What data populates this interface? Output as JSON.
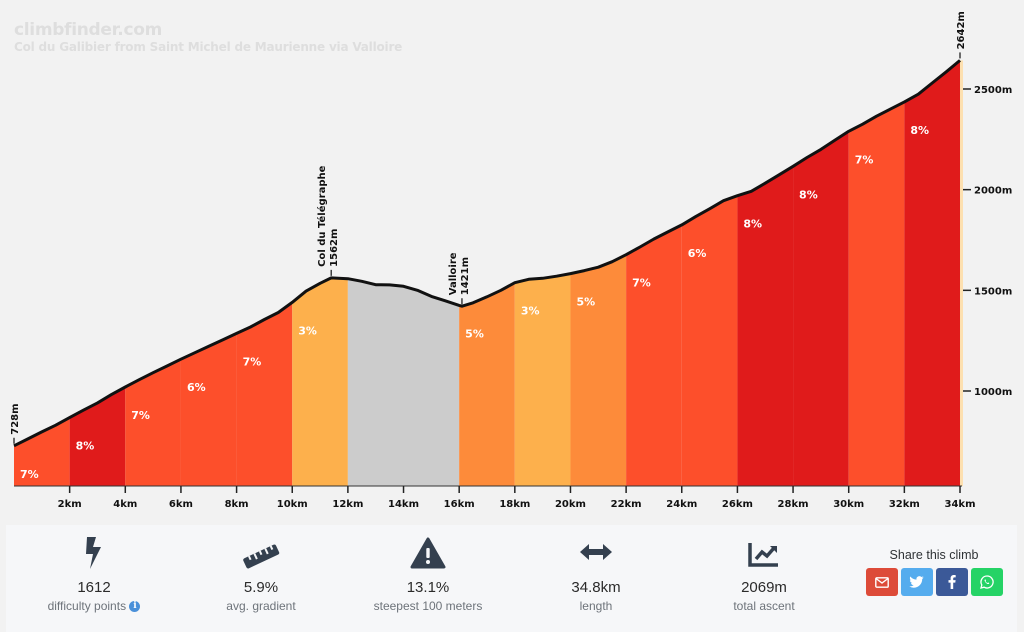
{
  "header": {
    "site": "climbfinder.com",
    "climb_title": "Col du Galibier from Saint Michel de Maurienne via Valloire"
  },
  "chart_data": {
    "type": "area",
    "title": "Col du Galibier from Saint Michel de Maurienne via Valloire",
    "xlabel": "",
    "ylabel": "",
    "x_unit": "km",
    "y_unit": "m",
    "xlim": [
      0,
      34
    ],
    "ylim": [
      530,
      2700
    ],
    "x_ticks": [
      2,
      4,
      6,
      8,
      10,
      12,
      14,
      16,
      18,
      20,
      22,
      24,
      26,
      28,
      30,
      32,
      34
    ],
    "x_tick_labels": [
      "2km",
      "4km",
      "6km",
      "8km",
      "10km",
      "12km",
      "14km",
      "16km",
      "18km",
      "20km",
      "22km",
      "24km",
      "26km",
      "28km",
      "30km",
      "32km",
      "34km"
    ],
    "y_ticks": [
      1000,
      1500,
      2000,
      2500
    ],
    "y_tick_labels": [
      "1000m",
      "1500m",
      "2000m",
      "2500m"
    ],
    "profile": {
      "x": [
        0,
        0.5,
        1,
        1.5,
        2,
        2.5,
        3,
        3.5,
        4,
        4.5,
        5,
        5.5,
        6,
        6.5,
        7,
        7.5,
        8,
        8.5,
        9,
        9.5,
        10,
        10.5,
        11,
        11.4,
        12,
        12.5,
        13,
        13.5,
        14,
        14.5,
        15,
        15.5,
        16,
        16.1,
        16.5,
        17,
        17.5,
        18,
        18.5,
        19,
        19.5,
        20,
        20.5,
        21,
        21.5,
        22,
        22.5,
        23,
        23.5,
        24,
        24.5,
        25,
        25.5,
        26,
        26.5,
        27,
        27.5,
        28,
        28.5,
        29,
        29.5,
        30,
        30.5,
        31,
        31.5,
        32,
        32.5,
        33,
        33.5,
        34
      ],
      "y": [
        728,
        762,
        797,
        830,
        868,
        905,
        941,
        982,
        1020,
        1056,
        1091,
        1124,
        1158,
        1190,
        1222,
        1254,
        1286,
        1318,
        1355,
        1390,
        1440,
        1496,
        1535,
        1562,
        1558,
        1545,
        1528,
        1527,
        1520,
        1500,
        1470,
        1448,
        1425,
        1421,
        1438,
        1468,
        1500,
        1538,
        1555,
        1560,
        1570,
        1583,
        1598,
        1615,
        1642,
        1677,
        1715,
        1755,
        1790,
        1825,
        1866,
        1905,
        1945,
        1970,
        1992,
        2032,
        2074,
        2116,
        2160,
        2200,
        2245,
        2290,
        2325,
        2365,
        2400,
        2436,
        2474,
        2530,
        2585,
        2642
      ]
    },
    "segments": [
      {
        "from_km": 0,
        "to_km": 2,
        "gradient": "7%",
        "color": "#fd4f2b"
      },
      {
        "from_km": 2,
        "to_km": 4,
        "gradient": "8%",
        "color": "#e01b1b"
      },
      {
        "from_km": 4,
        "to_km": 6,
        "gradient": "7%",
        "color": "#fd4f2b"
      },
      {
        "from_km": 6,
        "to_km": 8,
        "gradient": "6%",
        "color": "#fd4f2b"
      },
      {
        "from_km": 8,
        "to_km": 10,
        "gradient": "7%",
        "color": "#fd4f2b"
      },
      {
        "from_km": 10,
        "to_km": 12,
        "gradient": "3%",
        "color": "#fdb04c"
      },
      {
        "from_km": 12,
        "to_km": 16,
        "gradient": "",
        "color": "#cccccc"
      },
      {
        "from_km": 16,
        "to_km": 18,
        "gradient": "5%",
        "color": "#fd8b3a"
      },
      {
        "from_km": 18,
        "to_km": 20,
        "gradient": "3%",
        "color": "#fdb04c"
      },
      {
        "from_km": 20,
        "to_km": 22,
        "gradient": "5%",
        "color": "#fd8b3a"
      },
      {
        "from_km": 22,
        "to_km": 24,
        "gradient": "7%",
        "color": "#fd4f2b"
      },
      {
        "from_km": 24,
        "to_km": 26,
        "gradient": "6%",
        "color": "#fd4f2b"
      },
      {
        "from_km": 26,
        "to_km": 28,
        "gradient": "8%",
        "color": "#e01b1b"
      },
      {
        "from_km": 28,
        "to_km": 30,
        "gradient": "8%",
        "color": "#e01b1b"
      },
      {
        "from_km": 30,
        "to_km": 32,
        "gradient": "7%",
        "color": "#fd4f2b"
      },
      {
        "from_km": 32,
        "to_km": 34,
        "gradient": "8%",
        "color": "#e01b1b"
      }
    ],
    "annotations": [
      {
        "km": 0,
        "lines": [
          "728m"
        ]
      },
      {
        "km": 11.4,
        "lines": [
          "Col du Télégraphe",
          "1562m"
        ]
      },
      {
        "km": 16.1,
        "lines": [
          "Valloire",
          "1421m"
        ]
      },
      {
        "km": 34,
        "lines": [
          "2642m"
        ]
      }
    ]
  },
  "stats": [
    {
      "icon": "bolt-icon",
      "value": "1612",
      "label": "difficulty points",
      "info": "i"
    },
    {
      "icon": "ruler-icon",
      "value": "5.9%",
      "label": "avg. gradient"
    },
    {
      "icon": "warning-icon",
      "value": "13.1%",
      "label": "steepest 100 meters"
    },
    {
      "icon": "arrows-horizontal-icon",
      "value": "34.8km",
      "label": "length"
    },
    {
      "icon": "chart-line-icon",
      "value": "2069m",
      "label": "total ascent"
    }
  ],
  "share": {
    "title": "Share this climb",
    "buttons": [
      {
        "name": "email",
        "color": "#dd4b39"
      },
      {
        "name": "twitter",
        "color": "#55acee"
      },
      {
        "name": "facebook",
        "color": "#3b5998"
      },
      {
        "name": "whatsapp",
        "color": "#25d366"
      }
    ]
  }
}
